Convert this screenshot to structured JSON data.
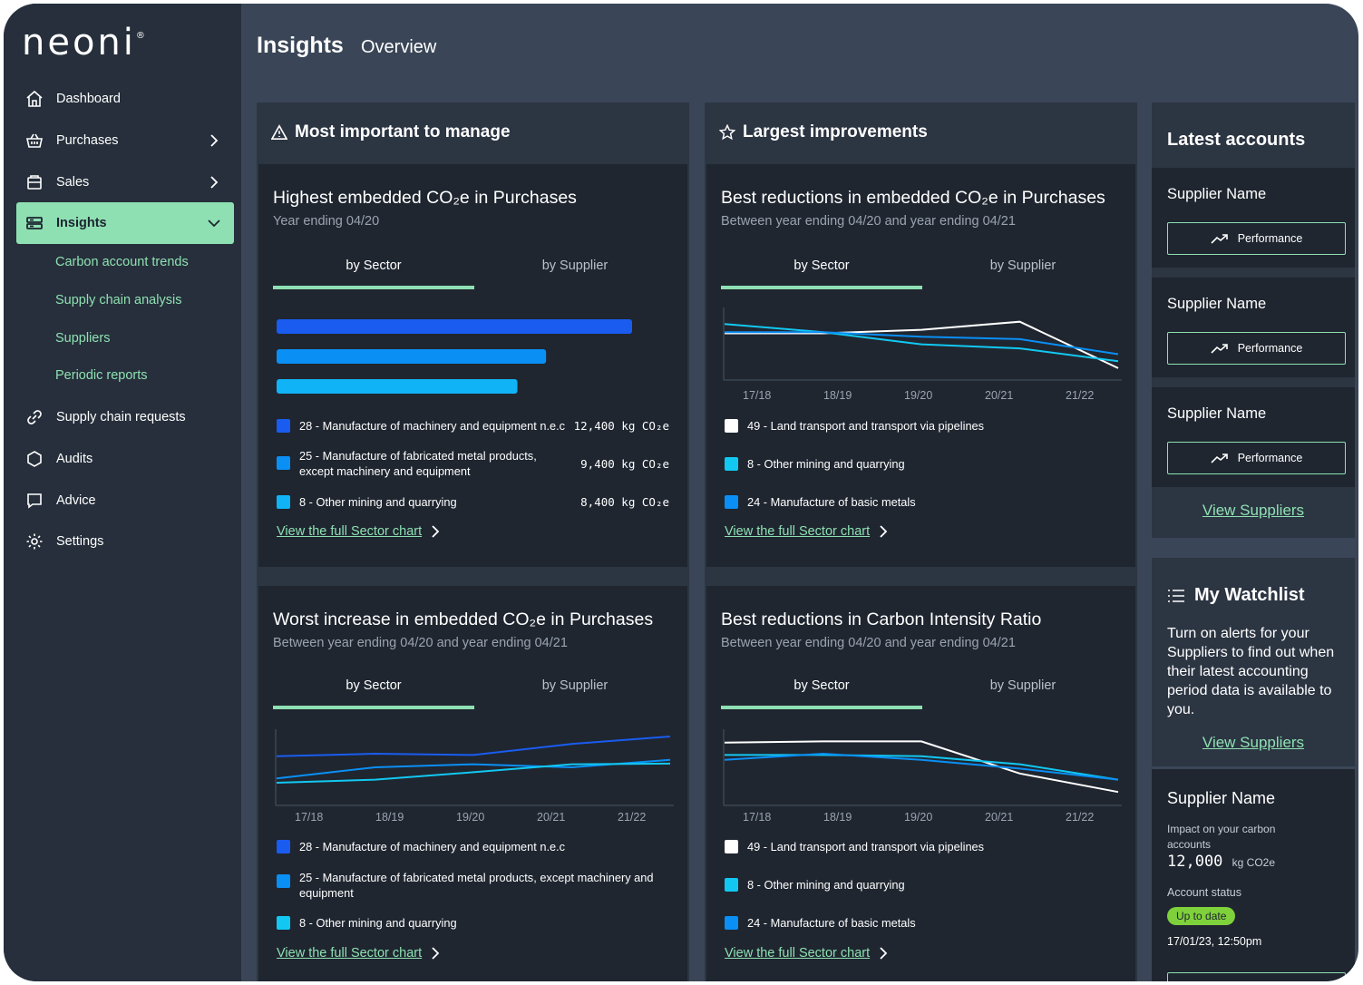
{
  "brand": {
    "logo": "neoni",
    "logo_mark": "®"
  },
  "nav": {
    "dashboard": "Dashboard",
    "purchases": "Purchases",
    "sales": "Sales",
    "insights": "Insights",
    "sub": [
      "Carbon account trends",
      "Supply chain analysis",
      "Suppliers",
      "Periodic reports"
    ],
    "supply_chain_requests": "Supply chain requests",
    "audits": "Audits",
    "advice": "Advice",
    "settings": "Settings"
  },
  "header": {
    "title": "Insights",
    "subtitle": "Overview"
  },
  "sections": {
    "manage": "Most important to manage",
    "improve": "Largest improvements",
    "latest": "Latest accounts"
  },
  "tabs": {
    "sector": "by Sector",
    "supplier": "by Supplier"
  },
  "view_link": "View the full Sector chart",
  "card1": {
    "title": "Highest embedded CO₂e in Purchases",
    "subtitle": "Year ending 04/20",
    "legend": [
      {
        "label": "28 - Manufacture of machinery and equipment n.e.c",
        "value": "12,400 kg CO₂e",
        "color": "#1a5cf0"
      },
      {
        "label": "25 - Manufacture of fabricated metal products, except machinery and equipment",
        "value": "9,400 kg CO₂e",
        "color": "#0a8ff5"
      },
      {
        "label": "8 - Other mining and quarrying",
        "value": "8,400 kg CO₂e",
        "color": "#10b3f5"
      }
    ]
  },
  "card2": {
    "title": "Best reductions in embedded CO₂e in Purchases",
    "subtitle": "Between year ending 04/20 and year ending 04/21",
    "legend": [
      {
        "label": "49 - Land transport and transport via pipelines",
        "color": "#ffffff"
      },
      {
        "label": "8 - Other mining and quarrying",
        "color": "#12c8f2"
      },
      {
        "label": "24 - Manufacture of basic metals",
        "color": "#0a8ff5"
      }
    ]
  },
  "card3": {
    "title": "Worst increase in embedded CO₂e in Purchases",
    "subtitle": "Between year ending 04/20 and year ending 04/21",
    "legend": [
      {
        "label": "28 - Manufacture of machinery and equipment n.e.c",
        "color": "#1a5cf0"
      },
      {
        "label": "25 - Manufacture of fabricated metal products, except machinery and equipment",
        "color": "#0a8ff5"
      },
      {
        "label": "8 - Other mining and quarrying",
        "color": "#12c8f2"
      }
    ]
  },
  "card4": {
    "title": "Best reductions in Carbon Intensity Ratio",
    "subtitle": "Between year ending 04/20 and year ending 04/21",
    "legend": [
      {
        "label": "49 - Land transport and transport via pipelines",
        "color": "#ffffff"
      },
      {
        "label": "8 - Other mining and quarrying",
        "color": "#12c8f2"
      },
      {
        "label": "24 - Manufacture of basic metals",
        "color": "#0a8ff5"
      }
    ]
  },
  "years": [
    "17/18",
    "18/19",
    "19/20",
    "20/21",
    "21/22"
  ],
  "chart_data": [
    {
      "type": "bar",
      "title": "Highest embedded CO₂e in Purchases",
      "categories": [
        "28",
        "25",
        "8"
      ],
      "values": [
        12400,
        9400,
        8400
      ],
      "unit": "kg CO₂e"
    },
    {
      "type": "line",
      "title": "Best reductions in embedded CO₂e in Purchases",
      "x": [
        "17/18",
        "18/19",
        "19/20",
        "20/21",
        "21/22"
      ],
      "series": [
        {
          "name": "49 - Land transport and transport via pipelines",
          "values": [
            68,
            68,
            74,
            88,
            8
          ]
        },
        {
          "name": "8 - Other mining and quarrying",
          "values": [
            84,
            70,
            49,
            42,
            20
          ]
        },
        {
          "name": "24 - Manufacture of basic metals",
          "values": [
            70,
            70,
            62,
            58,
            32
          ]
        }
      ]
    },
    {
      "type": "line",
      "title": "Worst increase in embedded CO₂e in Purchases",
      "x": [
        "17/18",
        "18/19",
        "19/20",
        "20/21",
        "21/22"
      ],
      "series": [
        {
          "name": "28 - Manufacture of machinery and equipment n.e.c",
          "values": [
            68,
            72,
            70,
            88,
            100
          ]
        },
        {
          "name": "25 - Manufacture of fabricated metal products, except machinery and equipment",
          "values": [
            32,
            50,
            55,
            50,
            62
          ]
        },
        {
          "name": "8 - Other mining and quarrying",
          "values": [
            25,
            30,
            42,
            55,
            56
          ]
        }
      ]
    },
    {
      "type": "line",
      "title": "Best reductions in Carbon Intensity Ratio",
      "x": [
        "17/18",
        "18/19",
        "19/20",
        "20/21",
        "21/22"
      ],
      "series": [
        {
          "name": "49 - Land transport and transport via pipelines",
          "values": [
            90,
            92,
            92,
            40,
            10
          ]
        },
        {
          "name": "8 - Other mining and quarrying",
          "values": [
            70,
            70,
            68,
            55,
            30
          ]
        },
        {
          "name": "24 - Manufacture of basic metals",
          "values": [
            62,
            72,
            62,
            48,
            30
          ]
        }
      ]
    }
  ],
  "accounts": [
    {
      "name": "Supplier Name",
      "button": "Performance"
    },
    {
      "name": "Supplier Name",
      "button": "Performance"
    },
    {
      "name": "Supplier Name",
      "button": "Performance"
    }
  ],
  "view_suppliers": "View Suppliers",
  "watchlist": {
    "title": "My Watchlist",
    "text": "Turn on alerts for your Suppliers to find out when their latest accounting period data is available to you.",
    "link": "View Suppliers"
  },
  "supplier_detail": {
    "name": "Supplier Name",
    "impact_label": "Impact on your carbon accounts",
    "impact_value": "12,000",
    "impact_unit": "kg CO2e",
    "status_label": "Account status",
    "status": "Up to date",
    "timestamp": "17/01/23, 12:50pm"
  },
  "colors": {
    "accent": "#8ee0b2",
    "bg": "#3a4657",
    "panel": "#2c3542",
    "card": "#1f2630",
    "status": "#7fd13b"
  }
}
